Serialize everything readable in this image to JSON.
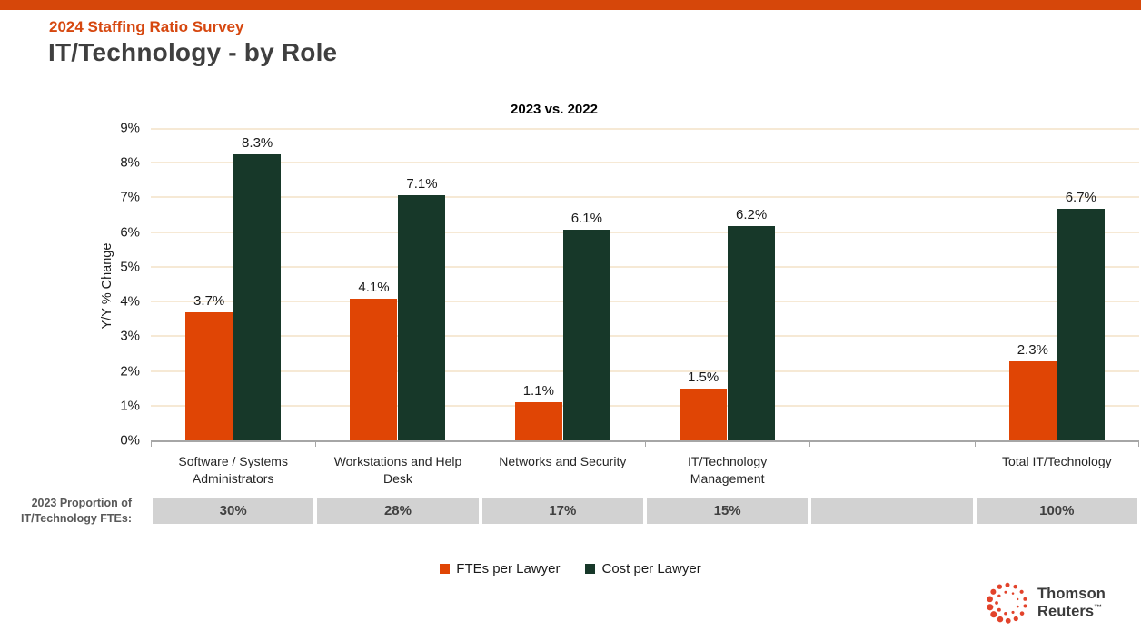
{
  "page": {
    "eyebrow": "2024 Staffing Ratio Survey",
    "title": "IT/Technology - by Role"
  },
  "chart_data": {
    "type": "bar",
    "title": "2023 vs. 2022",
    "ylabel": "Y/Y % Change",
    "ylim": [
      0,
      9
    ],
    "grid": true,
    "legend_position": "bottom",
    "yticks": [
      "0%",
      "1%",
      "2%",
      "3%",
      "4%",
      "5%",
      "6%",
      "7%",
      "8%",
      "9%"
    ],
    "categories": [
      "Software / Systems Administrators",
      "Workstations and Help Desk",
      "Networks and Security",
      "IT/Technology Management",
      "",
      "Total IT/Technology"
    ],
    "series": [
      {
        "name": "FTEs per Lawyer",
        "color": "#E04505",
        "values": [
          3.7,
          4.1,
          1.1,
          1.5,
          null,
          2.3
        ],
        "labels": [
          "3.7%",
          "4.1%",
          "1.1%",
          "1.5%",
          "",
          "2.3%"
        ]
      },
      {
        "name": "Cost per Lawyer",
        "color": "#173829",
        "values": [
          8.3,
          7.1,
          6.1,
          6.2,
          null,
          6.7
        ],
        "labels": [
          "8.3%",
          "7.1%",
          "6.1%",
          "6.2%",
          "",
          "6.7%"
        ]
      }
    ],
    "proportion_row": {
      "label_line1": "2023 Proportion of",
      "label_line2": "IT/Technology FTEs:",
      "values": [
        "30%",
        "28%",
        "17%",
        "15%",
        "",
        "100%"
      ]
    }
  },
  "branding": {
    "line1": "Thomson",
    "line2": "Reuters",
    "tm": "™",
    "dot_color": "#E2432B"
  },
  "colors": {
    "accent_orange": "#D6470A",
    "bar_orange": "#E04505",
    "bar_green": "#173829",
    "gridline": "#F6E9D5",
    "proportion_box": "#D2D2D2"
  }
}
